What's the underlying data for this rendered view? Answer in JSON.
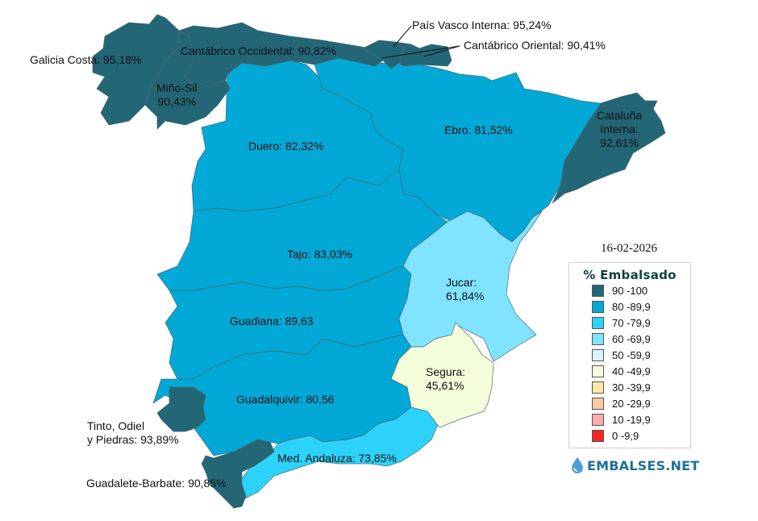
{
  "date": "16-02-2026",
  "legend": {
    "title": "% Embalsado",
    "items": [
      {
        "label": "90 -100",
        "color": "#236676"
      },
      {
        "label": "80 -89,9",
        "color": "#02a8d6"
      },
      {
        "label": "70 -79,9",
        "color": "#2dd2fb"
      },
      {
        "label": "60 -69,9",
        "color": "#80e3ff"
      },
      {
        "label": "50 -59,9",
        "color": "#d6f5ff"
      },
      {
        "label": "40 -49,9",
        "color": "#f4fdd9"
      },
      {
        "label": "30 -39,9",
        "color": "#ffe9a8"
      },
      {
        "label": "20 -29,9",
        "color": "#ffc8a4"
      },
      {
        "label": "10 -19,9",
        "color": "#ffabab"
      },
      {
        "label": "0 -9,9",
        "color": "#ff2222"
      }
    ]
  },
  "brand": {
    "name": "EMBALSES.NET",
    "icon": "water-drop-icon"
  },
  "basins": [
    {
      "name": "Galicia Costa",
      "label": "Galicia Costa: 95,18%",
      "value": 95.18
    },
    {
      "name": "Cantábrico Occidental",
      "label": "Cantábrico Occidental: 90,82%",
      "value": 90.82
    },
    {
      "name": "Miño-Sil",
      "label_line1": "Miño-Sil",
      "label_line2": "90,43%",
      "value": 90.43
    },
    {
      "name": "País Vasco Interna",
      "label": "País Vasco Interna: 95,24%",
      "value": 95.24
    },
    {
      "name": "Cantábrico Oriental",
      "label": "Cantábrico Oriental: 90,41%",
      "value": 90.41
    },
    {
      "name": "Ebro",
      "label": "Ebro: 81,52%",
      "value": 81.52
    },
    {
      "name": "Cataluña Interna",
      "label_line1": "Cataluña",
      "label_line2": "Interna:",
      "label_line3": "92,61%",
      "value": 92.61
    },
    {
      "name": "Duero",
      "label": "Duero: 82,32%",
      "value": 82.32
    },
    {
      "name": "Tajo",
      "label": "Tajo: 83,03%",
      "value": 83.03
    },
    {
      "name": "Jucar",
      "label_line1": "Jucar:",
      "label_line2": "61,84%",
      "value": 61.84
    },
    {
      "name": "Guadiana",
      "label": "Guadiana: 89,63",
      "value": 89.63
    },
    {
      "name": "Segura",
      "label_line1": "Segura:",
      "label_line2": "45,61%",
      "value": 45.61
    },
    {
      "name": "Guadalquivir",
      "label": "Guadalquivir: 80,56",
      "value": 80.56
    },
    {
      "name": "Tinto, Odiel y Piedras",
      "label_line1": "Tinto, Odiel",
      "label_line2": "y Piedras: 93,89%",
      "value": 93.89
    },
    {
      "name": "Med. Andaluza",
      "label": "Med. Andaluza: 73,85%",
      "value": 73.85
    },
    {
      "name": "Guadalete-Barbate",
      "label": "Guadalete-Barbate: 90,85%",
      "value": 90.85
    }
  ]
}
